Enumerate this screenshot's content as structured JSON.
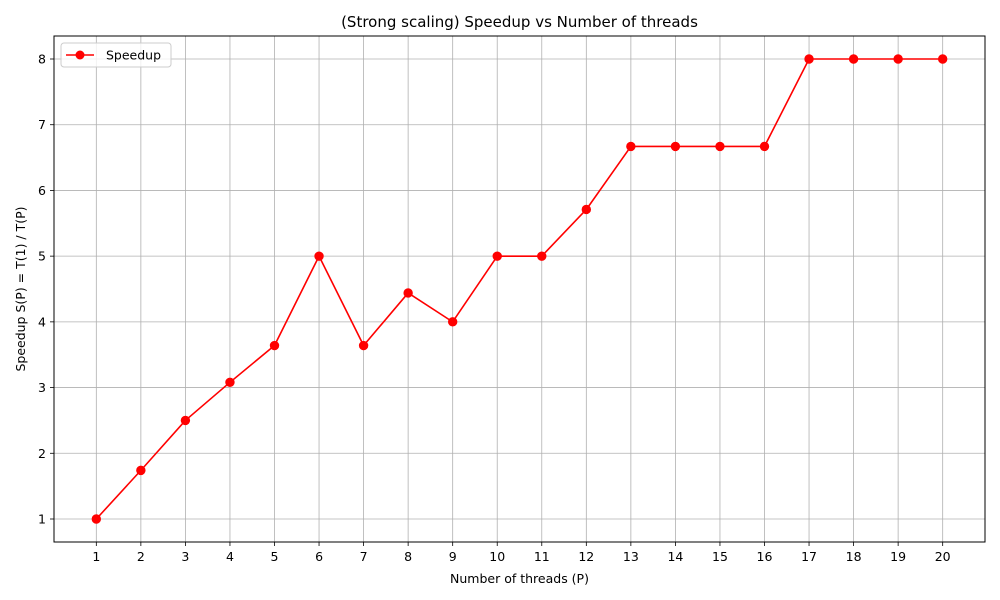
{
  "chart_data": {
    "type": "line",
    "title": "(Strong scaling) Speedup vs Number of threads",
    "xlabel": "Number of threads (P)",
    "ylabel": "Speedup S(P) = T(1) / T(P)",
    "x": [
      1,
      2,
      3,
      4,
      5,
      6,
      7,
      8,
      9,
      10,
      11,
      12,
      13,
      14,
      15,
      16,
      17,
      18,
      19,
      20
    ],
    "xticks": [
      "1",
      "2",
      "3",
      "4",
      "5",
      "6",
      "7",
      "8",
      "9",
      "10",
      "11",
      "12",
      "13",
      "14",
      "15",
      "16",
      "17",
      "18",
      "19",
      "20"
    ],
    "yticks": [
      "1",
      "2",
      "3",
      "4",
      "5",
      "6",
      "7",
      "8"
    ],
    "xlim": [
      0.05,
      20.95
    ],
    "ylim": [
      0.65,
      8.35
    ],
    "grid": true,
    "legend_position": "top-left",
    "series": [
      {
        "name": "Speedup",
        "color": "#ff0000",
        "marker": "circle",
        "values": [
          1.0,
          1.74,
          2.5,
          3.08,
          3.64,
          5.0,
          3.64,
          4.44,
          4.0,
          5.0,
          5.0,
          5.71,
          6.67,
          6.67,
          6.67,
          6.67,
          8.0,
          8.0,
          8.0,
          8.0
        ]
      }
    ]
  }
}
